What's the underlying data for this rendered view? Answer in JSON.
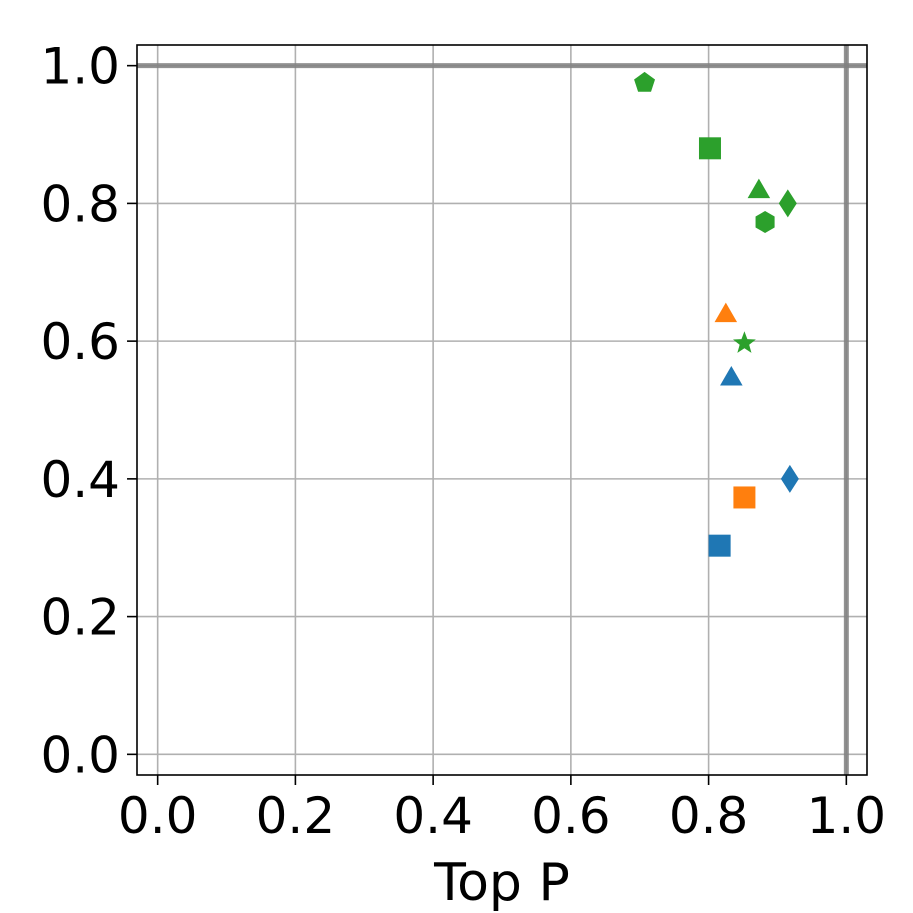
{
  "chart_data": {
    "type": "scatter",
    "xlabel": "Top P",
    "ylabel": "",
    "xlim": [
      -0.03,
      1.03
    ],
    "ylim": [
      -0.03,
      1.03
    ],
    "grid": true,
    "x_ticks": [
      "0.0",
      "0.2",
      "0.4",
      "0.6",
      "0.8",
      "1.0"
    ],
    "y_ticks": [
      "0.0",
      "0.2",
      "0.4",
      "0.6",
      "0.8",
      "1.0"
    ],
    "reference_lines": {
      "x": 1.0,
      "y": 1.0,
      "color": "#808080"
    },
    "colors": {
      "blue": "#1f77b4",
      "orange": "#ff7f0e",
      "green": "#2ca02c"
    },
    "points": [
      {
        "x": 0.707,
        "y": 0.975,
        "color": "green",
        "marker": "pentagon"
      },
      {
        "x": 0.802,
        "y": 0.88,
        "color": "green",
        "marker": "square"
      },
      {
        "x": 0.873,
        "y": 0.82,
        "color": "green",
        "marker": "triangle"
      },
      {
        "x": 0.915,
        "y": 0.8,
        "color": "green",
        "marker": "diamond"
      },
      {
        "x": 0.882,
        "y": 0.773,
        "color": "green",
        "marker": "hexagon"
      },
      {
        "x": 0.825,
        "y": 0.64,
        "color": "orange",
        "marker": "triangle"
      },
      {
        "x": 0.852,
        "y": 0.597,
        "color": "green",
        "marker": "star"
      },
      {
        "x": 0.833,
        "y": 0.548,
        "color": "blue",
        "marker": "triangle"
      },
      {
        "x": 0.918,
        "y": 0.4,
        "color": "blue",
        "marker": "diamond"
      },
      {
        "x": 0.852,
        "y": 0.373,
        "color": "orange",
        "marker": "square"
      },
      {
        "x": 0.816,
        "y": 0.303,
        "color": "blue",
        "marker": "square"
      }
    ]
  }
}
